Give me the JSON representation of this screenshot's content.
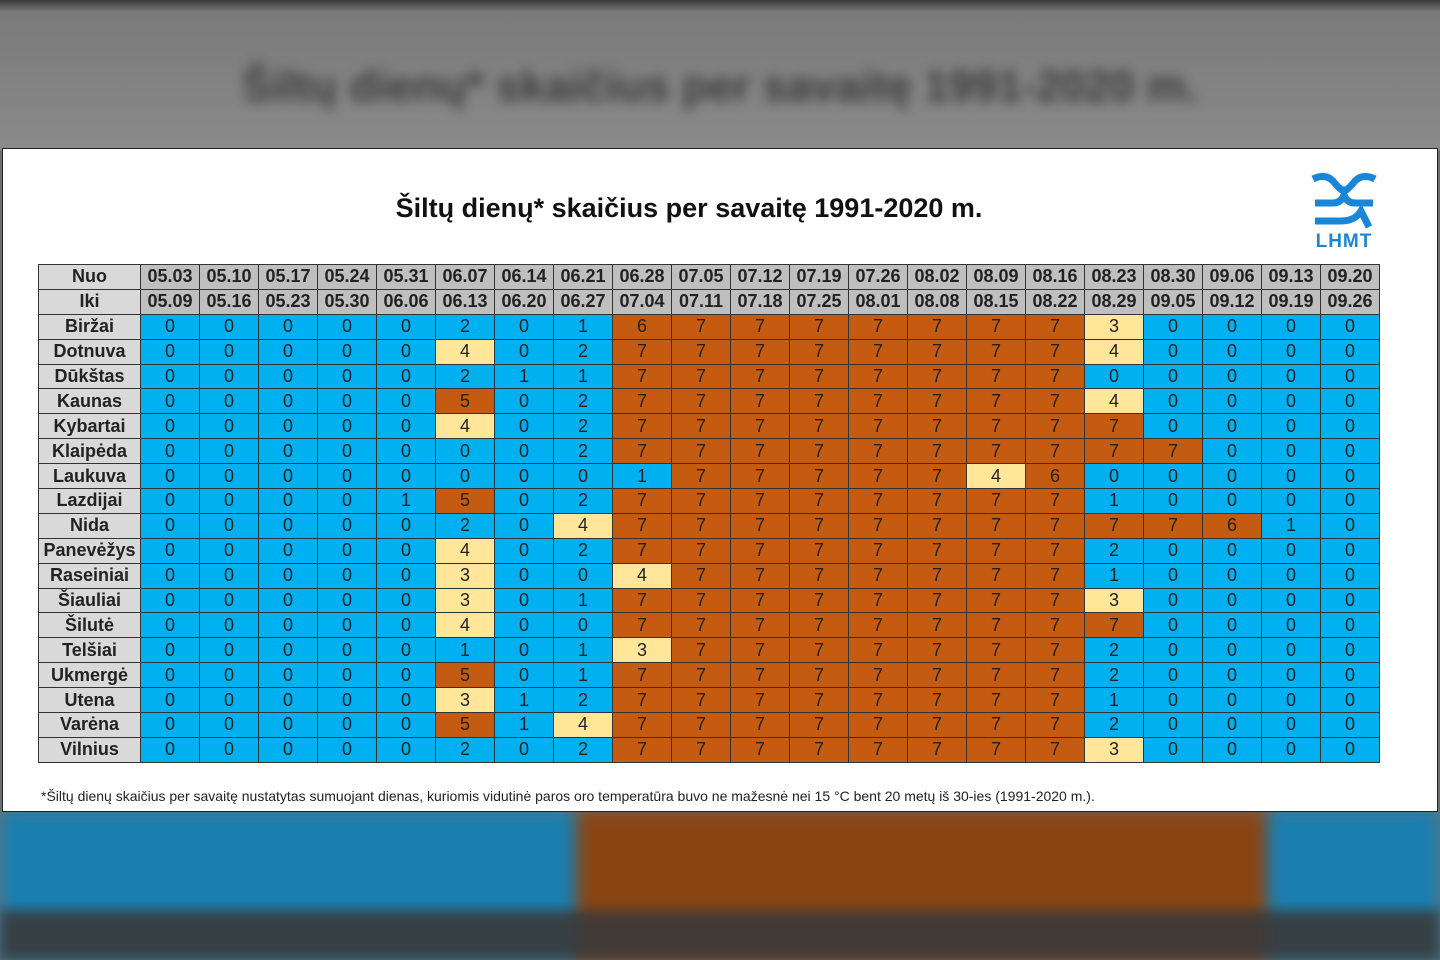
{
  "title": "Šiltų dienų* skaičius per savaitę 1991-2020 m.",
  "logo_text": "LHMT",
  "footnote": "*Šiltų dienų skaičius per savaitę nustatytas sumuojant dienas, kuriomis vidutinė paros oro temperatūra buvo ne mažesnė nei 15 °C bent 20 metų iš 30-ies (1991-2020 m.).",
  "colors": {
    "low": "#00b0f0",
    "mid": "#ffe699",
    "high": "#c55a11",
    "header": "#bfbfbf",
    "logo": "#1a86d8"
  },
  "chart_data": {
    "type": "table",
    "title": "Šiltų dienų* skaičius per savaitę 1991-2020 m.",
    "from_label": "Nuo",
    "to_label": "Iki",
    "from": [
      "05.03",
      "05.10",
      "05.17",
      "05.24",
      "05.31",
      "06.07",
      "06.14",
      "06.21",
      "06.28",
      "07.05",
      "07.12",
      "07.19",
      "07.26",
      "08.02",
      "08.09",
      "08.16",
      "08.23",
      "08.30",
      "09.06",
      "09.13",
      "09.20"
    ],
    "to": [
      "05.09",
      "05.16",
      "05.23",
      "05.30",
      "06.06",
      "06.13",
      "06.20",
      "06.27",
      "07.04",
      "07.11",
      "07.18",
      "07.25",
      "08.01",
      "08.08",
      "08.15",
      "08.22",
      "08.29",
      "09.05",
      "09.12",
      "09.19",
      "09.26"
    ],
    "rows": [
      {
        "station": "Biržai",
        "values": [
          0,
          0,
          0,
          0,
          0,
          2,
          0,
          1,
          6,
          7,
          7,
          7,
          7,
          7,
          7,
          7,
          3,
          0,
          0,
          0,
          0
        ]
      },
      {
        "station": "Dotnuva",
        "values": [
          0,
          0,
          0,
          0,
          0,
          4,
          0,
          2,
          7,
          7,
          7,
          7,
          7,
          7,
          7,
          7,
          4,
          0,
          0,
          0,
          0
        ]
      },
      {
        "station": "Dūkštas",
        "values": [
          0,
          0,
          0,
          0,
          0,
          2,
          1,
          1,
          7,
          7,
          7,
          7,
          7,
          7,
          7,
          7,
          0,
          0,
          0,
          0,
          0
        ]
      },
      {
        "station": "Kaunas",
        "values": [
          0,
          0,
          0,
          0,
          0,
          5,
          0,
          2,
          7,
          7,
          7,
          7,
          7,
          7,
          7,
          7,
          4,
          0,
          0,
          0,
          0
        ]
      },
      {
        "station": "Kybartai",
        "values": [
          0,
          0,
          0,
          0,
          0,
          4,
          0,
          2,
          7,
          7,
          7,
          7,
          7,
          7,
          7,
          7,
          7,
          0,
          0,
          0,
          0
        ]
      },
      {
        "station": "Klaipėda",
        "values": [
          0,
          0,
          0,
          0,
          0,
          0,
          0,
          2,
          7,
          7,
          7,
          7,
          7,
          7,
          7,
          7,
          7,
          7,
          0,
          0,
          0
        ]
      },
      {
        "station": "Laukuva",
        "values": [
          0,
          0,
          0,
          0,
          0,
          0,
          0,
          0,
          1,
          7,
          7,
          7,
          7,
          7,
          4,
          6,
          0,
          0,
          0,
          0,
          0
        ]
      },
      {
        "station": "Lazdijai",
        "values": [
          0,
          0,
          0,
          0,
          1,
          5,
          0,
          2,
          7,
          7,
          7,
          7,
          7,
          7,
          7,
          7,
          1,
          0,
          0,
          0,
          0
        ]
      },
      {
        "station": "Nida",
        "values": [
          0,
          0,
          0,
          0,
          0,
          2,
          0,
          4,
          7,
          7,
          7,
          7,
          7,
          7,
          7,
          7,
          7,
          7,
          6,
          1,
          0
        ]
      },
      {
        "station": "Panevėžys",
        "values": [
          0,
          0,
          0,
          0,
          0,
          4,
          0,
          2,
          7,
          7,
          7,
          7,
          7,
          7,
          7,
          7,
          2,
          0,
          0,
          0,
          0
        ]
      },
      {
        "station": "Raseiniai",
        "values": [
          0,
          0,
          0,
          0,
          0,
          3,
          0,
          0,
          4,
          7,
          7,
          7,
          7,
          7,
          7,
          7,
          1,
          0,
          0,
          0,
          0
        ]
      },
      {
        "station": "Šiauliai",
        "values": [
          0,
          0,
          0,
          0,
          0,
          3,
          0,
          1,
          7,
          7,
          7,
          7,
          7,
          7,
          7,
          7,
          3,
          0,
          0,
          0,
          0
        ]
      },
      {
        "station": "Šilutė",
        "values": [
          0,
          0,
          0,
          0,
          0,
          4,
          0,
          0,
          7,
          7,
          7,
          7,
          7,
          7,
          7,
          7,
          7,
          0,
          0,
          0,
          0
        ]
      },
      {
        "station": "Telšiai",
        "values": [
          0,
          0,
          0,
          0,
          0,
          1,
          0,
          1,
          3,
          7,
          7,
          7,
          7,
          7,
          7,
          7,
          2,
          0,
          0,
          0,
          0
        ]
      },
      {
        "station": "Ukmergė",
        "values": [
          0,
          0,
          0,
          0,
          0,
          5,
          0,
          1,
          7,
          7,
          7,
          7,
          7,
          7,
          7,
          7,
          2,
          0,
          0,
          0,
          0
        ]
      },
      {
        "station": "Utena",
        "values": [
          0,
          0,
          0,
          0,
          0,
          3,
          1,
          2,
          7,
          7,
          7,
          7,
          7,
          7,
          7,
          7,
          1,
          0,
          0,
          0,
          0
        ]
      },
      {
        "station": "Varėna",
        "values": [
          0,
          0,
          0,
          0,
          0,
          5,
          1,
          4,
          7,
          7,
          7,
          7,
          7,
          7,
          7,
          7,
          2,
          0,
          0,
          0,
          0
        ]
      },
      {
        "station": "Vilnius",
        "values": [
          0,
          0,
          0,
          0,
          0,
          2,
          0,
          2,
          7,
          7,
          7,
          7,
          7,
          7,
          7,
          7,
          3,
          0,
          0,
          0,
          0
        ]
      }
    ]
  }
}
